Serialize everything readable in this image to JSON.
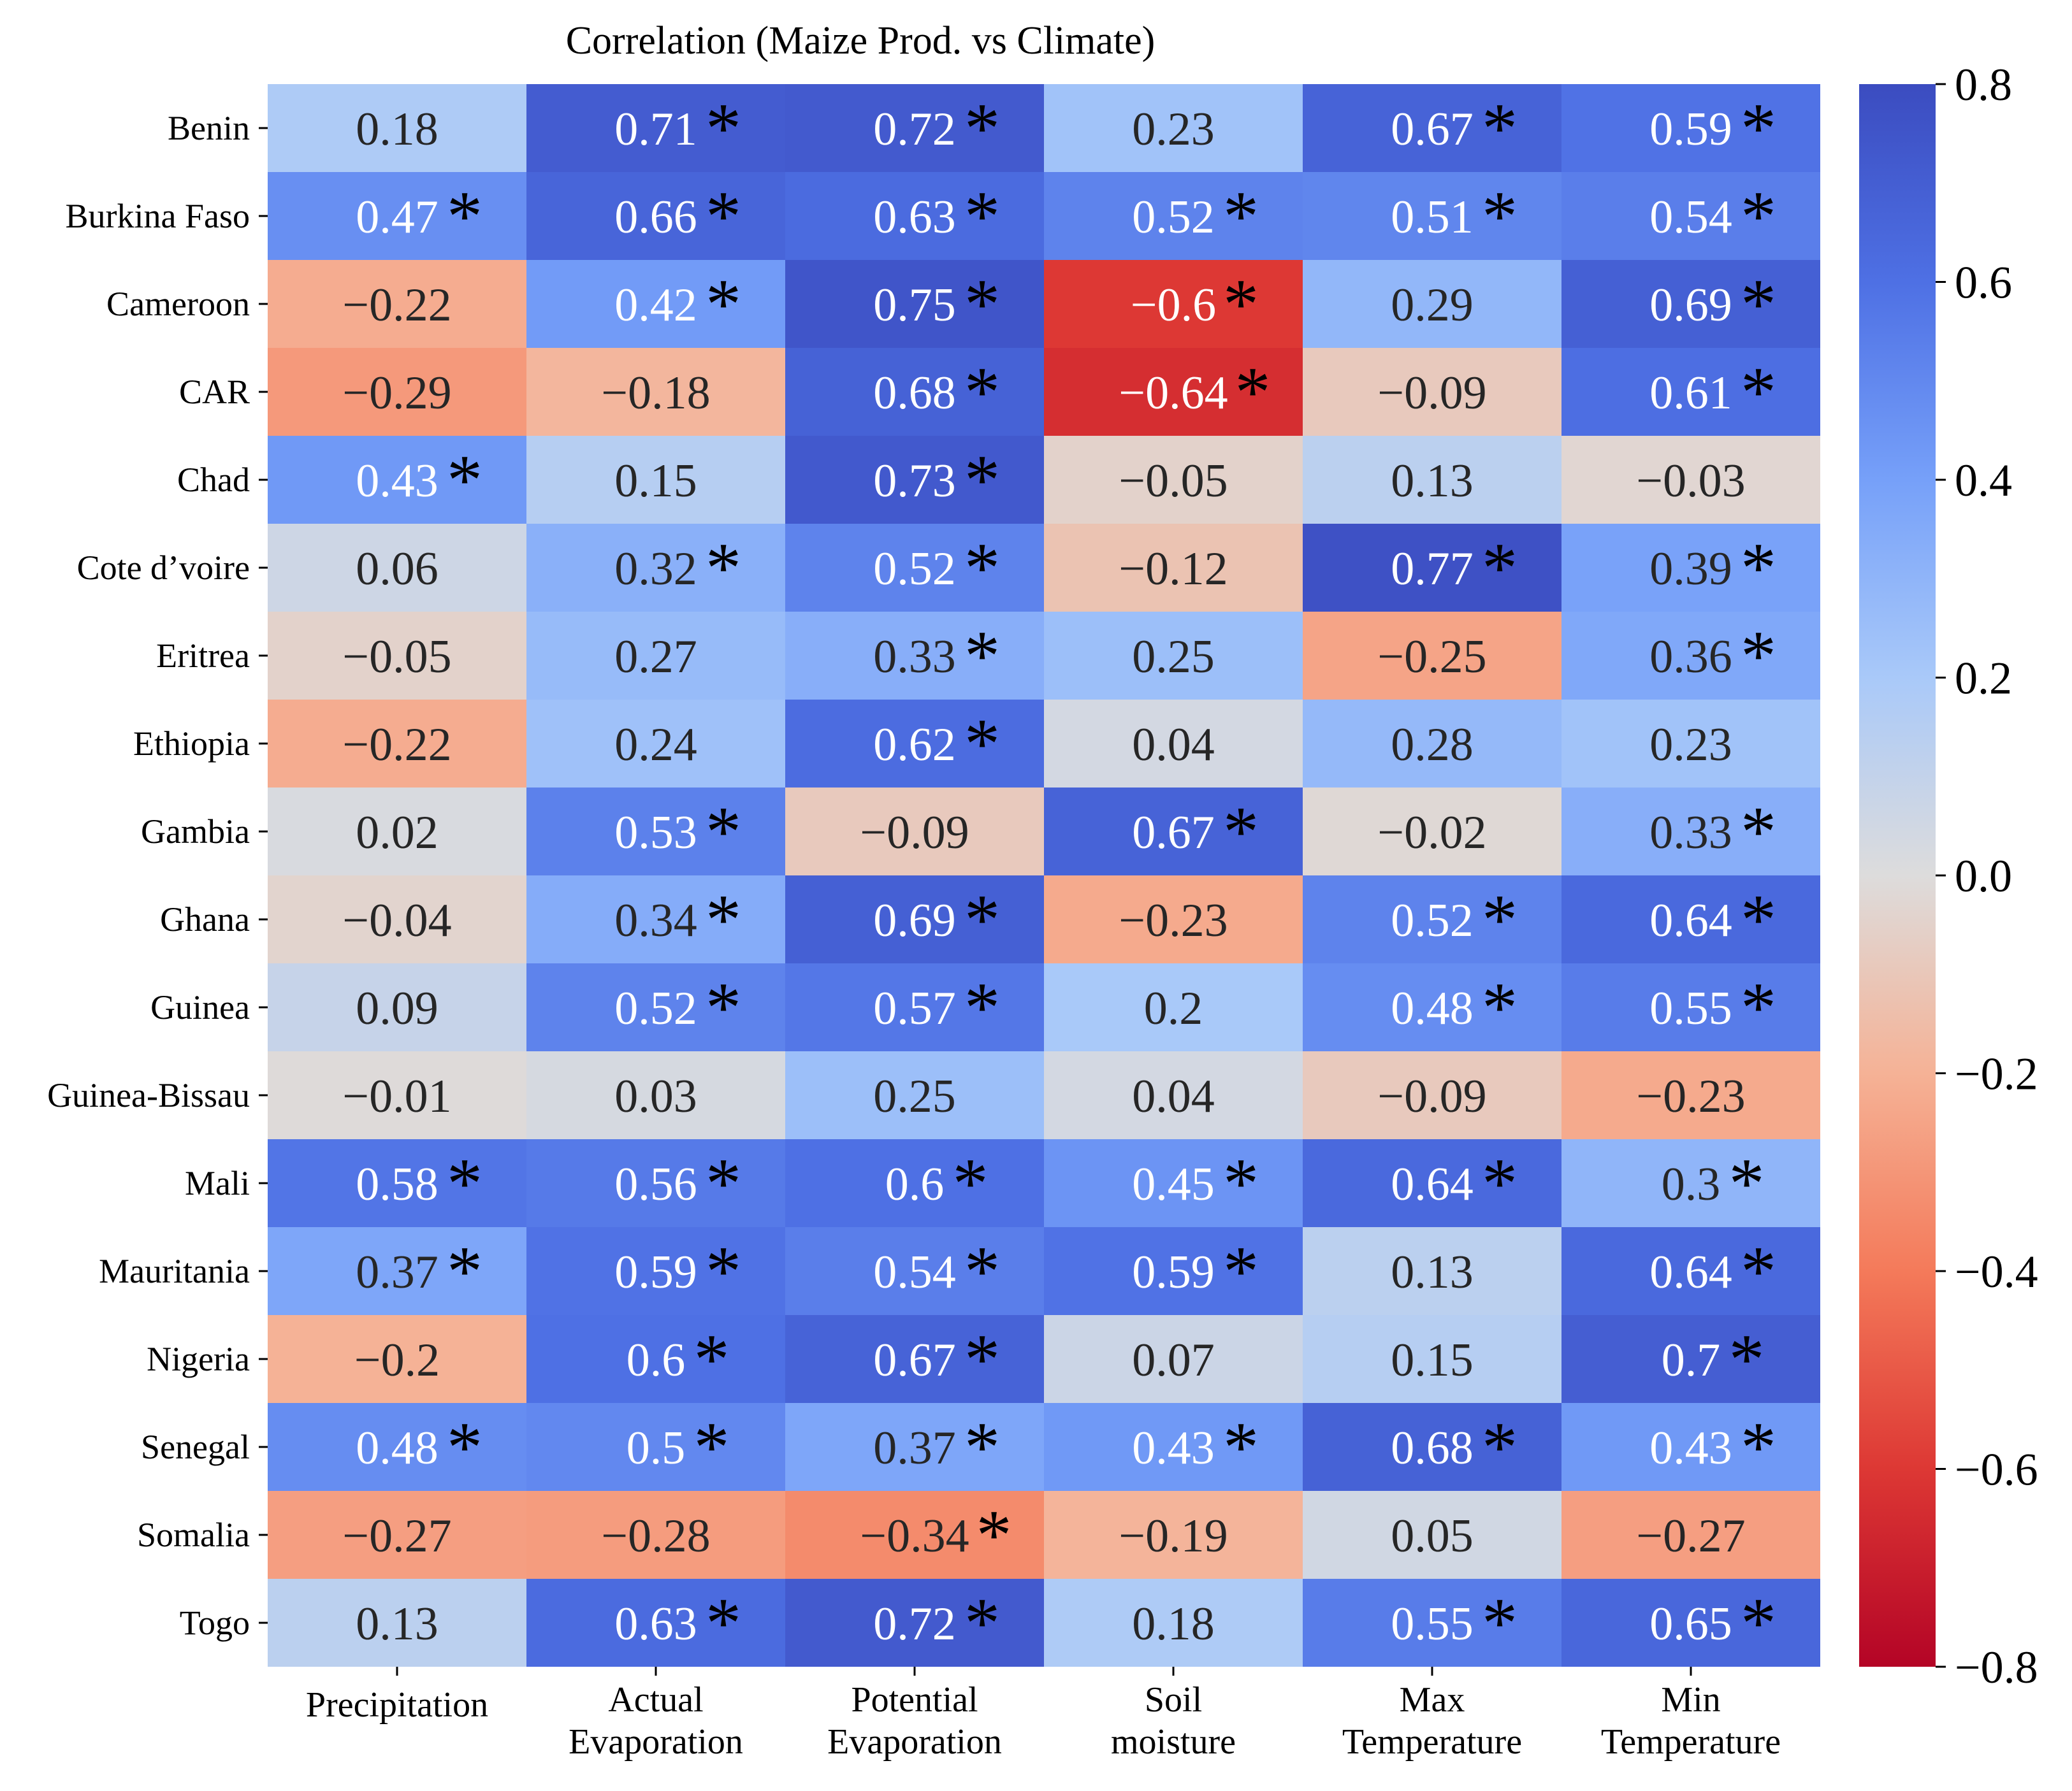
{
  "chart_data": {
    "type": "heatmap",
    "title": "Correlation (Maize Prod. vs Climate)",
    "rows": [
      "Benin",
      "Burkina Faso",
      "Cameroon",
      "CAR",
      "Chad",
      "Cote d’voire",
      "Eritrea",
      "Ethiopia",
      "Gambia",
      "Ghana",
      "Guinea",
      "Guinea-Bissau",
      "Mali",
      "Mauritania",
      "Nigeria",
      "Senegal",
      "Somalia",
      "Togo"
    ],
    "columns": [
      [
        "Precipitation"
      ],
      [
        "Actual",
        "Evaporation"
      ],
      [
        "Potential",
        "Evaporation"
      ],
      [
        "Soil",
        "moisture"
      ],
      [
        "Max",
        "Temperature"
      ],
      [
        "Min",
        "Temperature"
      ]
    ],
    "values": [
      [
        0.18,
        0.71,
        0.72,
        0.23,
        0.67,
        0.59
      ],
      [
        0.47,
        0.66,
        0.63,
        0.52,
        0.51,
        0.54
      ],
      [
        -0.22,
        0.42,
        0.75,
        -0.6,
        0.29,
        0.69
      ],
      [
        -0.29,
        -0.18,
        0.68,
        -0.64,
        -0.09,
        0.61
      ],
      [
        0.43,
        0.15,
        0.73,
        -0.05,
        0.13,
        -0.03
      ],
      [
        0.06,
        0.32,
        0.52,
        -0.12,
        0.77,
        0.39
      ],
      [
        -0.05,
        0.27,
        0.33,
        0.25,
        -0.25,
        0.36
      ],
      [
        -0.22,
        0.24,
        0.62,
        0.04,
        0.28,
        0.23
      ],
      [
        0.02,
        0.53,
        -0.09,
        0.67,
        -0.02,
        0.33
      ],
      [
        -0.04,
        0.34,
        0.69,
        -0.23,
        0.52,
        0.64
      ],
      [
        0.09,
        0.52,
        0.57,
        0.2,
        0.48,
        0.55
      ],
      [
        -0.01,
        0.03,
        0.25,
        0.04,
        -0.09,
        -0.23
      ],
      [
        0.58,
        0.56,
        0.6,
        0.45,
        0.64,
        0.3
      ],
      [
        0.37,
        0.59,
        0.54,
        0.59,
        0.13,
        0.64
      ],
      [
        -0.2,
        0.6,
        0.67,
        0.07,
        0.15,
        0.7
      ],
      [
        0.48,
        0.5,
        0.37,
        0.43,
        0.68,
        0.43
      ],
      [
        -0.27,
        -0.28,
        -0.34,
        -0.19,
        0.05,
        -0.27
      ],
      [
        0.13,
        0.63,
        0.72,
        0.18,
        0.55,
        0.65
      ]
    ],
    "significant": [
      [
        false,
        true,
        true,
        false,
        true,
        true
      ],
      [
        true,
        true,
        true,
        true,
        true,
        true
      ],
      [
        false,
        true,
        true,
        true,
        false,
        true
      ],
      [
        false,
        false,
        true,
        true,
        false,
        true
      ],
      [
        true,
        false,
        true,
        false,
        false,
        false
      ],
      [
        false,
        true,
        true,
        false,
        true,
        true
      ],
      [
        false,
        false,
        true,
        false,
        false,
        true
      ],
      [
        false,
        false,
        true,
        false,
        false,
        false
      ],
      [
        false,
        true,
        false,
        true,
        false,
        true
      ],
      [
        false,
        true,
        true,
        false,
        true,
        true
      ],
      [
        false,
        true,
        true,
        false,
        true,
        true
      ],
      [
        false,
        false,
        false,
        false,
        false,
        false
      ],
      [
        true,
        true,
        true,
        true,
        true,
        true
      ],
      [
        true,
        true,
        true,
        true,
        false,
        true
      ],
      [
        false,
        true,
        true,
        false,
        false,
        true
      ],
      [
        true,
        true,
        true,
        true,
        true,
        true
      ],
      [
        false,
        false,
        true,
        false,
        false,
        false
      ],
      [
        false,
        true,
        true,
        false,
        true,
        true
      ]
    ],
    "significance_marker": "*",
    "colormap": "coolwarm_r",
    "vmin": -0.8,
    "vmax": 0.8,
    "colorbar_ticks": [
      "0.8",
      "0.6",
      "0.4",
      "0.2",
      "0.0",
      "−0.2",
      "−0.4",
      "−0.6",
      "−0.8"
    ],
    "colorbar_tick_values": [
      0.8,
      0.6,
      0.4,
      0.2,
      0.0,
      -0.2,
      -0.4,
      -0.6,
      -0.8
    ],
    "colors": {
      "high": "#3b4cc0",
      "mid": "#dddcdc",
      "low": "#b40426",
      "text_light": "#ffffff",
      "text_dark": "#262626"
    }
  }
}
